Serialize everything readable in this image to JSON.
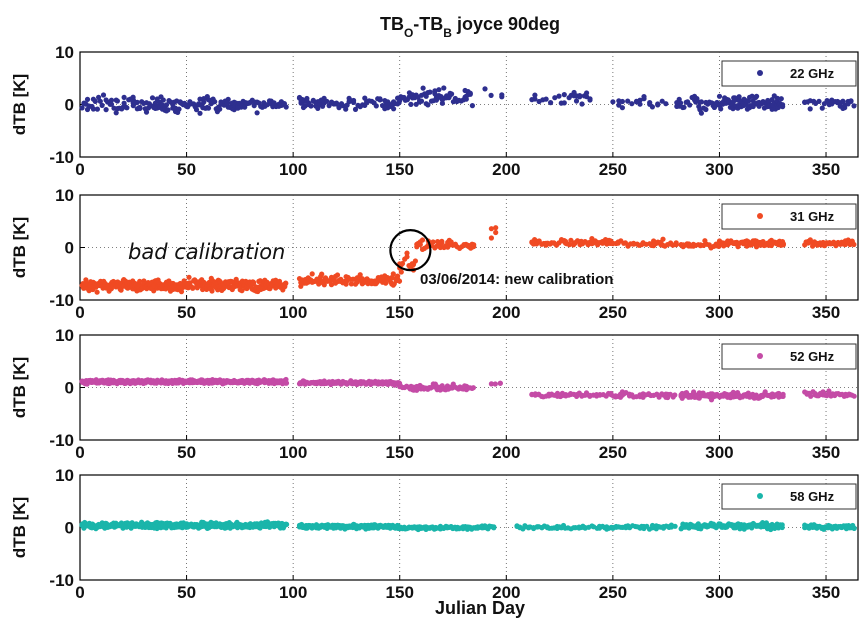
{
  "title": {
    "main": "TB",
    "sub1": "O",
    "dash": "-TB",
    "sub2": "B",
    "rest": " joyce 90deg"
  },
  "xlabel": "Julian Day",
  "ylabel": "dTB [K]",
  "colors": {
    "22 GHz": "#2e2f8f",
    "31 GHz": "#f04a23",
    "52 GHz": "#c44ba6",
    "58 GHz": "#1ab5aa",
    "grid": "#555555"
  },
  "chart_data": {
    "type": "scatter",
    "xlim": [
      0,
      365
    ],
    "ylim": [
      -10,
      10
    ],
    "xticks": [
      0,
      50,
      100,
      150,
      200,
      250,
      300,
      350
    ],
    "yticks": [
      -10,
      0,
      10
    ],
    "grid": "dotted",
    "legend_position": "top-right",
    "panels": [
      {
        "name": "22 GHz",
        "color": "#2e2f8f",
        "segments": [
          {
            "x0": 1,
            "x1": 25,
            "step": 0.9,
            "mean": 0.2,
            "amp": 2.2
          },
          {
            "x0": 25,
            "x1": 97,
            "step": 0.7,
            "mean": 0.0,
            "amp": 2.0
          },
          {
            "x0": 103,
            "x1": 150,
            "step": 0.9,
            "mean": 0.3,
            "amp": 1.6
          },
          {
            "x0": 150,
            "x1": 185,
            "step": 0.8,
            "mean": 1.5,
            "amp": 2.2
          },
          {
            "x0": 190,
            "x1": 200,
            "step": 4,
            "mean": 2.0,
            "amp": 2.0
          },
          {
            "x0": 212,
            "x1": 240,
            "step": 1.6,
            "mean": 1.0,
            "amp": 2.0
          },
          {
            "x0": 250,
            "x1": 275,
            "step": 2,
            "mean": 0.5,
            "amp": 1.6
          },
          {
            "x0": 280,
            "x1": 300,
            "step": 0.9,
            "mean": 0.3,
            "amp": 2.4
          },
          {
            "x0": 300,
            "x1": 330,
            "step": 0.5,
            "mean": 0.2,
            "amp": 2.2
          },
          {
            "x0": 340,
            "x1": 364,
            "step": 1.2,
            "mean": 0.2,
            "amp": 1.6
          }
        ]
      },
      {
        "name": "31 GHz",
        "color": "#f04a23",
        "segments": [
          {
            "x0": 1,
            "x1": 97,
            "step": 0.4,
            "mean": -7.2,
            "amp": 1.6
          },
          {
            "x0": 103,
            "x1": 150,
            "step": 0.7,
            "mean": -6.2,
            "amp": 1.6
          },
          {
            "x0": 150,
            "x1": 158,
            "step": 0.8,
            "mean": -3.0,
            "amp": 2.6
          },
          {
            "x0": 158,
            "x1": 185,
            "step": 0.8,
            "mean": 0.5,
            "amp": 1.2
          },
          {
            "x0": 193,
            "x1": 198,
            "step": 2.5,
            "mean": 3.5,
            "amp": 2.0
          },
          {
            "x0": 212,
            "x1": 250,
            "step": 0.9,
            "mean": 1.0,
            "amp": 0.9
          },
          {
            "x0": 250,
            "x1": 280,
            "step": 1.2,
            "mean": 0.8,
            "amp": 0.9
          },
          {
            "x0": 282,
            "x1": 300,
            "step": 1.0,
            "mean": 0.5,
            "amp": 1.0
          },
          {
            "x0": 300,
            "x1": 330,
            "step": 0.6,
            "mean": 0.8,
            "amp": 0.9
          },
          {
            "x0": 340,
            "x1": 364,
            "step": 0.8,
            "mean": 0.8,
            "amp": 0.8
          }
        ]
      },
      {
        "name": "52 GHz",
        "color": "#c44ba6",
        "segments": [
          {
            "x0": 1,
            "x1": 97,
            "step": 0.3,
            "mean": 1.1,
            "amp": 0.5
          },
          {
            "x0": 103,
            "x1": 150,
            "step": 0.4,
            "mean": 0.9,
            "amp": 0.5
          },
          {
            "x0": 150,
            "x1": 185,
            "step": 0.7,
            "mean": 0.0,
            "amp": 0.8
          },
          {
            "x0": 193,
            "x1": 198,
            "step": 3,
            "mean": 0.8,
            "amp": 0.3
          },
          {
            "x0": 212,
            "x1": 280,
            "step": 1.2,
            "mean": -1.4,
            "amp": 0.8
          },
          {
            "x0": 282,
            "x1": 330,
            "step": 0.6,
            "mean": -1.5,
            "amp": 0.9
          },
          {
            "x0": 340,
            "x1": 364,
            "step": 0.8,
            "mean": -1.3,
            "amp": 0.7
          }
        ]
      },
      {
        "name": "58 GHz",
        "color": "#1ab5aa",
        "segments": [
          {
            "x0": 1,
            "x1": 97,
            "step": 0.35,
            "mean": 0.4,
            "amp": 0.8
          },
          {
            "x0": 103,
            "x1": 150,
            "step": 0.4,
            "mean": 0.2,
            "amp": 0.6
          },
          {
            "x0": 150,
            "x1": 195,
            "step": 0.8,
            "mean": 0.0,
            "amp": 0.5
          },
          {
            "x0": 205,
            "x1": 250,
            "step": 1.2,
            "mean": 0.0,
            "amp": 0.5
          },
          {
            "x0": 250,
            "x1": 280,
            "step": 1.3,
            "mean": 0.1,
            "amp": 0.5
          },
          {
            "x0": 282,
            "x1": 330,
            "step": 0.6,
            "mean": 0.3,
            "amp": 0.8
          },
          {
            "x0": 340,
            "x1": 364,
            "step": 0.8,
            "mean": 0.1,
            "amp": 0.5
          }
        ]
      }
    ],
    "annotations": [
      {
        "text": "bad calibration",
        "panel": 1,
        "style": "italic"
      },
      {
        "text": "03/06/2014: new calibration",
        "panel": 1,
        "circle_at": [
          155,
          -0.5
        ]
      }
    ]
  }
}
